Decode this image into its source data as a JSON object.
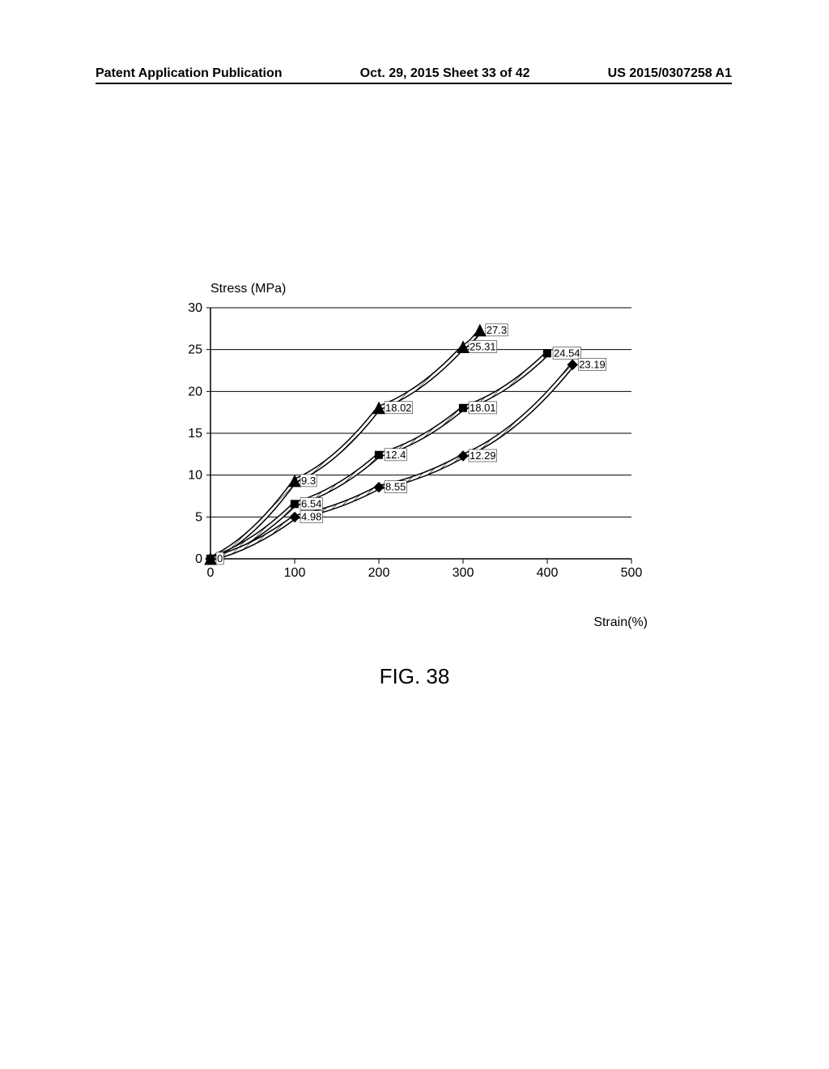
{
  "header": {
    "left": "Patent Application Publication",
    "center": "Oct. 29, 2015  Sheet 33 of 42",
    "right": "US 2015/0307258 A1"
  },
  "chart": {
    "type": "line",
    "y_title": "Stress (MPa)",
    "x_title": "Strain(%)",
    "xlim": [
      0,
      500
    ],
    "ylim": [
      0,
      30
    ],
    "xtick_step": 100,
    "ytick_step": 5,
    "xtick_values": [
      0,
      100,
      200,
      300,
      400,
      500
    ],
    "ytick_values": [
      0,
      5,
      10,
      15,
      20,
      25,
      30
    ],
    "background_color": "#ffffff",
    "grid_color": "#000000",
    "axis_color": "#000000",
    "line_color": "#000000",
    "line_width": 4,
    "hatch_pattern": true,
    "label_fontsize": 16,
    "tick_fontsize": 16,
    "point_label_fontsize": 13,
    "series": [
      {
        "name": "series-a",
        "marker": "triangle",
        "marker_size": 7,
        "points": [
          {
            "x": 0,
            "y": 0,
            "label": ""
          },
          {
            "x": 100,
            "y": 9.3,
            "label": "9.3"
          },
          {
            "x": 200,
            "y": 18.02,
            "label": "18.02"
          },
          {
            "x": 300,
            "y": 25.31,
            "label": "25.31"
          },
          {
            "x": 320,
            "y": 27.3,
            "label": "27.3"
          }
        ]
      },
      {
        "name": "series-b",
        "marker": "square",
        "marker_size": 6,
        "points": [
          {
            "x": 0,
            "y": 0,
            "label": ""
          },
          {
            "x": 100,
            "y": 6.54,
            "label": "6.54"
          },
          {
            "x": 200,
            "y": 12.4,
            "label": "12.4"
          },
          {
            "x": 300,
            "y": 18.01,
            "label": "18.01"
          },
          {
            "x": 400,
            "y": 24.54,
            "label": "24.54"
          }
        ]
      },
      {
        "name": "series-c",
        "marker": "diamond",
        "marker_size": 6,
        "points": [
          {
            "x": 0,
            "y": 0,
            "label": "0"
          },
          {
            "x": 100,
            "y": 4.98,
            "label": "4.98"
          },
          {
            "x": 200,
            "y": 8.55,
            "label": "8.55"
          },
          {
            "x": 300,
            "y": 12.29,
            "label": "12.29"
          },
          {
            "x": 430,
            "y": 23.19,
            "label": "23.19"
          }
        ]
      }
    ]
  },
  "figure_caption": "FIG. 38"
}
